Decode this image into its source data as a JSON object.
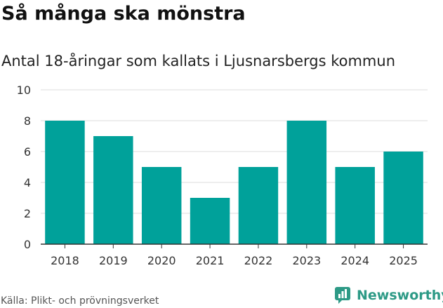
{
  "header": {
    "title": "Så många ska mönstra",
    "subtitle": "Antal 18-åringar som kallats i Ljusnarsbergs kommun"
  },
  "footer": {
    "source": "Källa: Plikt- och prövningsverket",
    "brand": "Newsworthy"
  },
  "colors": {
    "bar": "#00a19a",
    "brand": "#2d9a86"
  },
  "chart_data": {
    "type": "bar",
    "title": "Så många ska mönstra",
    "subtitle": "Antal 18-åringar som kallats i Ljusnarsbergs kommun",
    "xlabel": "",
    "ylabel": "",
    "categories": [
      "2018",
      "2019",
      "2020",
      "2021",
      "2022",
      "2023",
      "2024",
      "2025"
    ],
    "values": [
      8,
      7,
      5,
      3,
      5,
      8,
      5,
      6
    ],
    "ylim": [
      0,
      10
    ],
    "yticks": [
      0,
      2,
      4,
      6,
      8,
      10
    ],
    "grid": true
  }
}
